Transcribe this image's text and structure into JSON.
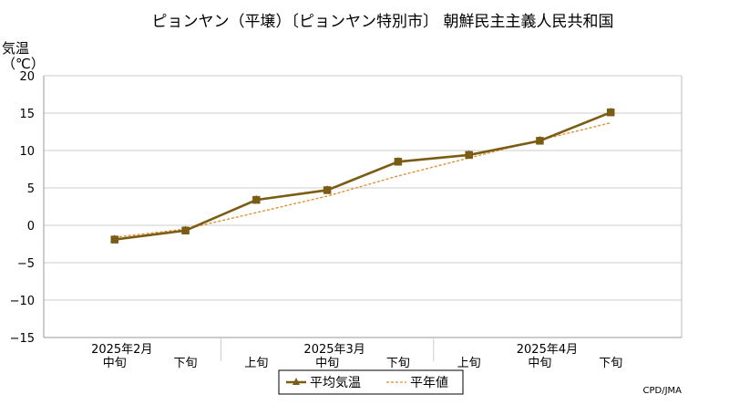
{
  "chart_data": {
    "type": "line",
    "title": "ピョンヤン（平壌）〔ピョンヤン特別市〕 朝鮮民主主義人民共和国",
    "ylabel": "気温\n（℃）",
    "xlabel": "",
    "ylim": [
      -15,
      20
    ],
    "yticks": [
      20,
      15,
      10,
      5,
      0,
      -5,
      -10,
      -15
    ],
    "grid": true,
    "legend_position": "bottom-center",
    "categories": [
      "中旬",
      "下旬",
      "上旬",
      "中旬",
      "下旬",
      "上旬",
      "中旬",
      "下旬"
    ],
    "month_labels": [
      {
        "label": "2025年2月",
        "index": 0
      },
      {
        "label": "2025年3月",
        "index": 3
      },
      {
        "label": "2025年4月",
        "index": 6
      }
    ],
    "series": [
      {
        "name": "平均気温",
        "values": [
          -1.9,
          -0.7,
          3.4,
          4.7,
          8.5,
          9.4,
          11.3,
          15.1
        ],
        "color": "#7a5c14",
        "style": "solid-marker"
      },
      {
        "name": "平年値",
        "values": [
          -1.6,
          -0.5,
          1.7,
          3.9,
          6.6,
          9.0,
          11.4,
          13.7
        ],
        "color": "#e08a28",
        "style": "dashed"
      }
    ],
    "credit": "CPD/JMA"
  }
}
